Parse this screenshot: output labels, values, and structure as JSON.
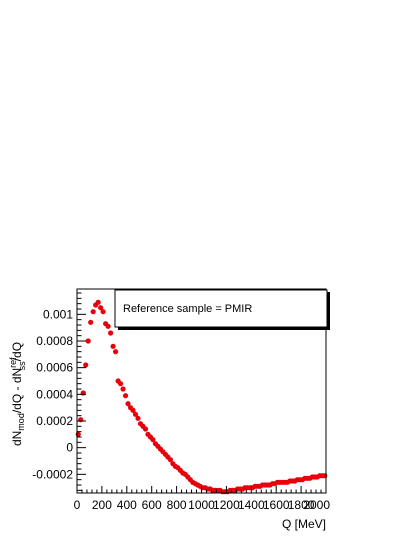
{
  "chart_data": {
    "type": "scatter",
    "title": "",
    "xlabel": "Q [MeV]",
    "ylabel_parts": {
      "a": "dN",
      "a_sub": "mod",
      "b": "/dQ - dN",
      "b_sup": "ref",
      "b_sub": "ss",
      "c": "/dQ"
    },
    "xlim": [
      0,
      2000
    ],
    "ylim": [
      -0.00034,
      0.00119
    ],
    "x_ticks": [
      "0",
      "200",
      "400",
      "600",
      "800",
      "1000",
      "1200",
      "1400",
      "1600",
      "1800",
      "2000"
    ],
    "y_ticks": [
      {
        "value": -0.0002,
        "label": "-0.0002"
      },
      {
        "value": 0,
        "label": "0"
      },
      {
        "value": 0.0002,
        "label": "0.0002"
      },
      {
        "value": 0.0004,
        "label": "0.0004"
      },
      {
        "value": 0.0006,
        "label": "0.0006"
      },
      {
        "value": 0.0008,
        "label": "0.0008"
      },
      {
        "value": 0.001,
        "label": "0.001"
      }
    ],
    "legend": {
      "text": "Reference sample = PMIR",
      "placement": "top-right"
    },
    "grid": false,
    "series": [
      {
        "color": "#e8000b",
        "x": [
          10,
          30,
          50,
          70,
          90,
          110,
          130,
          150,
          170,
          190,
          210,
          230,
          250,
          270,
          290,
          310,
          330,
          350,
          370,
          390,
          410,
          430,
          450,
          470,
          490,
          510,
          530,
          550,
          570,
          590,
          610,
          630,
          650,
          670,
          690,
          710,
          730,
          750,
          770,
          790,
          810,
          830,
          850,
          870,
          890,
          910,
          930,
          950,
          970,
          990,
          1010,
          1030,
          1050,
          1070,
          1090,
          1110,
          1130,
          1150,
          1170,
          1190,
          1210,
          1230,
          1250,
          1270,
          1290,
          1310,
          1330,
          1350,
          1370,
          1390,
          1410,
          1430,
          1450,
          1470,
          1490,
          1510,
          1530,
          1550,
          1570,
          1590,
          1610,
          1630,
          1650,
          1670,
          1690,
          1710,
          1730,
          1750,
          1770,
          1790,
          1810,
          1830,
          1850,
          1870,
          1890,
          1910,
          1930,
          1950,
          1970,
          1990
        ],
        "y": [
          0.0001,
          0.00021,
          0.00041,
          0.00062,
          0.0008,
          0.00094,
          0.00102,
          0.00107,
          0.00109,
          0.00105,
          0.00102,
          0.00093,
          0.00091,
          0.00086,
          0.00076,
          0.00072,
          0.0005,
          0.00048,
          0.00044,
          0.00039,
          0.00033,
          0.0003,
          0.00028,
          0.00025,
          0.00022,
          0.00018,
          0.00016,
          0.00014,
          0.0001,
          8e-05,
          6e-05,
          3e-05,
          1e-05,
          -1e-05,
          -3e-05,
          -5e-05,
          -7e-05,
          -9e-05,
          -0.00012,
          -0.00014,
          -0.00015,
          -0.00017,
          -0.00019,
          -0.0002,
          -0.00022,
          -0.00024,
          -0.00026,
          -0.00027,
          -0.00028,
          -0.00029,
          -0.0003,
          -0.0003,
          -0.00031,
          -0.00031,
          -0.00032,
          -0.00032,
          -0.00032,
          -0.00032,
          -0.00033,
          -0.00033,
          -0.00033,
          -0.00032,
          -0.00032,
          -0.00032,
          -0.00031,
          -0.00031,
          -0.00031,
          -0.0003,
          -0.0003,
          -0.0003,
          -0.0003,
          -0.00029,
          -0.00029,
          -0.00029,
          -0.00028,
          -0.00028,
          -0.00028,
          -0.00028,
          -0.00027,
          -0.00027,
          -0.00026,
          -0.00026,
          -0.00026,
          -0.00026,
          -0.00026,
          -0.00025,
          -0.00025,
          -0.00025,
          -0.00024,
          -0.00024,
          -0.00024,
          -0.00023,
          -0.00023,
          -0.00023,
          -0.00022,
          -0.00022,
          -0.00022,
          -0.00021,
          -0.00021,
          -0.00021
        ]
      }
    ]
  }
}
